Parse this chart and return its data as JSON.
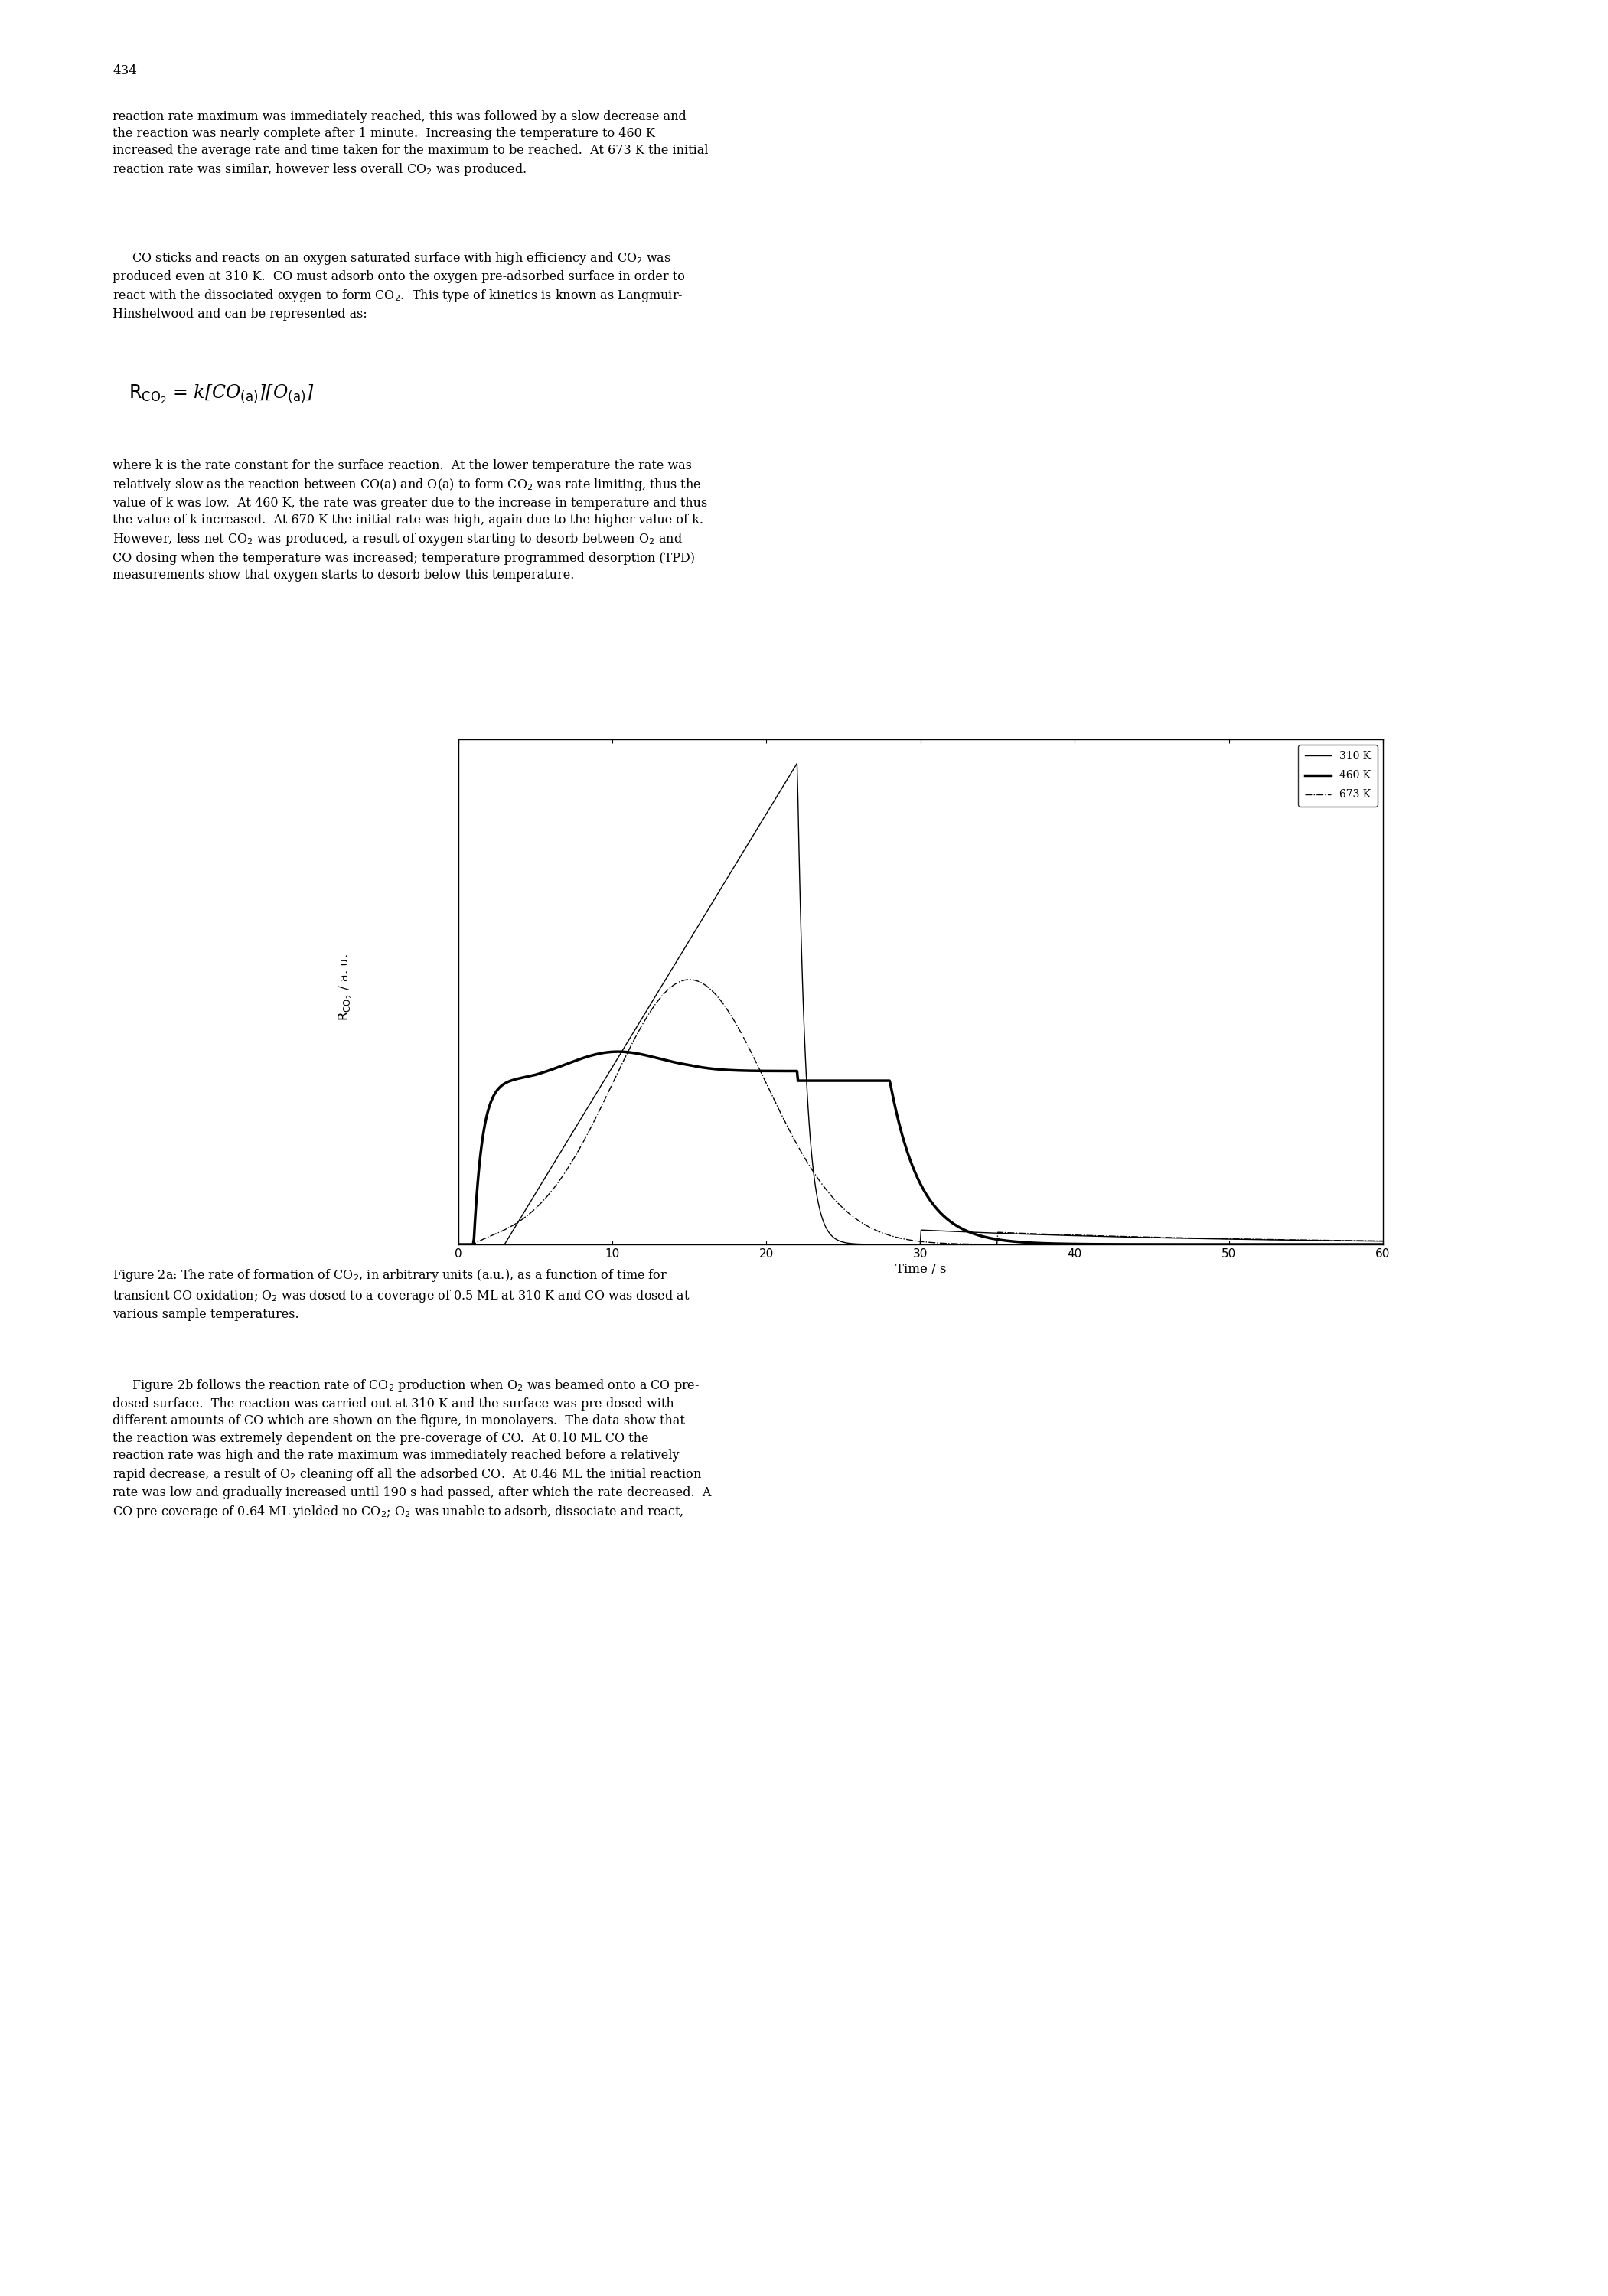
{
  "background_color": "#ffffff",
  "xlim": [
    0,
    60
  ],
  "xticks": [
    0,
    10,
    20,
    30,
    40,
    50,
    60
  ],
  "xlabel": "Time / s",
  "page_number": "434",
  "para1": "reaction rate maximum was immediately reached, this was followed by a slow decrease and\nthe reaction was nearly complete after 1 minute.  Increasing the temperature to 460 K\nincreased the average rate and time taken for the maximum to be reached.  At 673 K the initial\nreaction rate was similar, however less overall CO$_2$ was produced.",
  "para2": "     CO sticks and reacts on an oxygen saturated surface with high efficiency and CO$_2$ was\nproduced even at 310 K.  CO must adsorb onto the oxygen pre-adsorbed surface in order to\nreact with the dissociated oxygen to form CO$_2$.  This type of kinetics is known as Langmuir-\nHinshelwood and can be represented as:",
  "formula": "R$_{CO_2}$ = k[CO$_{(a)}$][O$_{(a)}$]",
  "para3": "where k is the rate constant for the surface reaction.  At the lower temperature the rate was\nrelatively slow as the reaction between CO(a) and O(a) to form CO$_2$ was rate limiting, thus the\nvalue of k was low.  At 460 K, the rate was greater due to the increase in temperature and thus\nthe value of k increased.  At 670 K the initial rate was high, again due to the higher value of k.\nHowever, less net CO$_2$ was produced, a result of oxygen starting to desorb between O$_2$ and\nCO dosing when the temperature was increased; temperature programmed desorption (TPD)\nmeasurements show that oxygen starts to desorb below this temperature.",
  "caption": "Figure 2a: The rate of formation of CO$_2$, in arbitrary units (a.u.), as a function of time for\ntransient CO oxidation; O$_2$ was dosed to a coverage of 0.5 ML at 310 K and CO was dosed at\nvarious sample temperatures.",
  "para4": "     Figure 2b follows the reaction rate of CO$_2$ production when O$_2$ was beamed onto a CO pre-\ndosed surface.  The reaction was carried out at 310 K and the surface was pre-dosed with\ndifferent amounts of CO which are shown on the figure, in monolayers.  The data show that\nthe reaction was extremely dependent on the pre-coverage of CO.  At 0.10 ML CO the\nreaction rate was high and the rate maximum was immediately reached before a relatively\nrapid decrease, a result of O$_2$ cleaning off all the adsorbed CO.  At 0.46 ML the initial reaction\nrate was low and gradually increased until 190 s had passed, after which the rate decreased.  A\nCO pre-coverage of 0.64 ML yielded no CO$_2$; O$_2$ was unable to adsorb, dissociate and react,"
}
